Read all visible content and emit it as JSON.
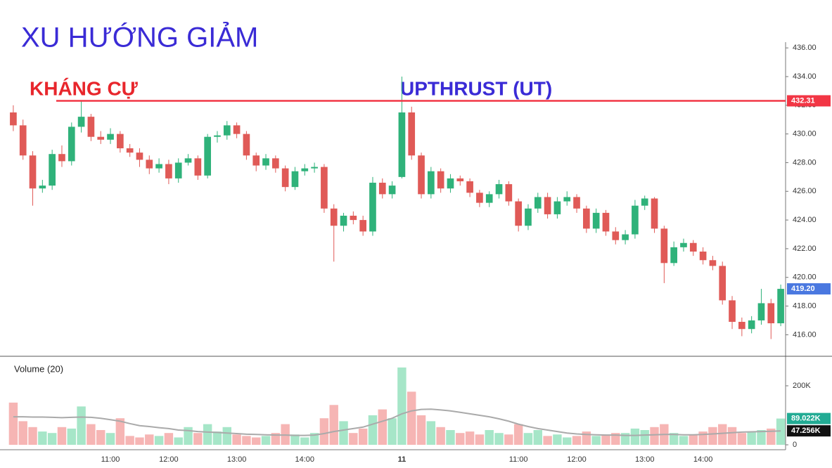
{
  "chart_data": {
    "type": "candlestick",
    "title": "XU HƯỚNG GIẢM",
    "annotations": [
      {
        "text": "KHÁNG CỰ",
        "color": "#e8262c"
      },
      {
        "text": "UPTHRUST (UT)",
        "color": "#3a2bd6"
      }
    ],
    "resistance_level": 432.31,
    "resistance_color": "#f23645",
    "categories": [
      null,
      null,
      null,
      null,
      null,
      null,
      null,
      null,
      null,
      null,
      "11:00",
      null,
      null,
      null,
      null,
      null,
      "12:00",
      null,
      null,
      null,
      null,
      null,
      null,
      "13:00",
      null,
      null,
      null,
      null,
      null,
      null,
      "14:00",
      null,
      null,
      null,
      null,
      null,
      null,
      null,
      null,
      null,
      "11",
      null,
      null,
      null,
      null,
      null,
      null,
      null,
      null,
      null,
      null,
      null,
      "11:00",
      null,
      null,
      null,
      null,
      null,
      "12:00",
      null,
      null,
      null,
      null,
      null,
      null,
      "13:00",
      null,
      null,
      null,
      null,
      null,
      "14:00",
      null,
      null,
      null,
      null,
      null,
      null,
      null,
      null
    ],
    "open": [
      431.5,
      430.6,
      428.5,
      426.2,
      426.4,
      428.6,
      428.1,
      430.5,
      431.2,
      429.8,
      429.6,
      430,
      429,
      428.7,
      428.2,
      427.6,
      427.9,
      426.9,
      428,
      428.3,
      427.1,
      429.8,
      429.9,
      430.6,
      430,
      428.5,
      427.8,
      428.3,
      427.6,
      426.3,
      427.4,
      427.6,
      427.7,
      424.8,
      423.6,
      424.3,
      424,
      423.2,
      426.6,
      425.8,
      427,
      431.5,
      428.5,
      425.8,
      427.4,
      426.2,
      426.9,
      426.7,
      425.9,
      425.2,
      425.8,
      426.5,
      425.3,
      423.6,
      424.8,
      425.6,
      424.4,
      425.3,
      425.6,
      424.8,
      423.4,
      424.5,
      423.2,
      422.6,
      423,
      425,
      425.5,
      423.4,
      421,
      422.1,
      422.4,
      421.8,
      421.2,
      420.8,
      418.4,
      416.9,
      416.4,
      417,
      418.2,
      416.8
    ],
    "high": [
      432,
      431,
      428.8,
      426.8,
      428.9,
      429.2,
      430.8,
      432.3,
      431.4,
      430.2,
      430.4,
      430.2,
      429.3,
      429,
      428.5,
      428.3,
      428.2,
      428.3,
      428.6,
      428.5,
      430,
      430.2,
      430.9,
      430.8,
      430.2,
      428.7,
      428.6,
      428.5,
      427.8,
      427.7,
      427.9,
      428,
      427.9,
      425.1,
      424.5,
      424.6,
      424.3,
      427,
      426.9,
      426.7,
      434,
      431.9,
      428.7,
      427.7,
      427.6,
      427.2,
      427.1,
      426.9,
      426.1,
      426,
      426.8,
      426.7,
      425.5,
      425.1,
      425.9,
      425.9,
      425.6,
      426,
      425.8,
      425,
      424.8,
      424.7,
      423.5,
      423.3,
      425.4,
      425.7,
      425.6,
      423.6,
      422.5,
      422.7,
      422.6,
      422.1,
      421.5,
      421.1,
      418.7,
      417.2,
      417.3,
      419.2,
      418.5,
      419.5
    ],
    "low": [
      430.2,
      428.2,
      425,
      425.9,
      426.1,
      427.7,
      427.8,
      430.1,
      429.5,
      429.3,
      429.3,
      428.7,
      428.4,
      427.7,
      427.2,
      427.3,
      426.5,
      426.6,
      427.8,
      426.8,
      426.9,
      429.4,
      429.6,
      429.7,
      428.2,
      427.4,
      427.5,
      427.3,
      426,
      426.1,
      427.1,
      427.3,
      424.5,
      421.1,
      423.2,
      423.7,
      422.9,
      422.9,
      425.5,
      425.5,
      426.9,
      428.2,
      425.5,
      425.5,
      425.9,
      425.9,
      426.4,
      425.6,
      424.9,
      424.9,
      425.5,
      425,
      423.2,
      423.3,
      424.5,
      424.1,
      424.1,
      425,
      424.5,
      423.1,
      423.1,
      422.9,
      422.3,
      422.3,
      422.7,
      424.7,
      423.1,
      419.6,
      420.8,
      421.8,
      421.5,
      420.9,
      420.5,
      418.1,
      416.4,
      415.9,
      416.1,
      416.7,
      415.7,
      416.6
    ],
    "close": [
      430.6,
      428.5,
      426.2,
      426.4,
      428.6,
      428.1,
      430.5,
      431.2,
      429.8,
      429.6,
      430,
      429,
      428.7,
      428.2,
      427.6,
      427.9,
      426.9,
      428,
      428.3,
      427.1,
      429.8,
      429.9,
      430.6,
      430,
      428.5,
      427.8,
      428.3,
      427.6,
      426.3,
      427.4,
      427.6,
      427.7,
      424.8,
      423.6,
      424.3,
      424,
      423.2,
      426.6,
      425.8,
      426.4,
      431.5,
      428.5,
      425.8,
      427.4,
      426.2,
      426.9,
      426.7,
      425.9,
      425.2,
      425.8,
      426.5,
      425.3,
      423.6,
      424.8,
      425.6,
      424.4,
      425.3,
      425.6,
      424.8,
      423.4,
      424.5,
      423.2,
      422.6,
      423,
      425,
      425.5,
      423.4,
      421,
      422.1,
      422.4,
      421.8,
      421.2,
      420.8,
      418.4,
      416.9,
      416.4,
      417,
      418.2,
      416.8,
      419.2
    ],
    "up_color": "#2fb27a",
    "down_color": "#e05a57",
    "ylim": [
      414.5,
      436.4
    ],
    "yticks": [
      {
        "value": 416,
        "label": "416.00"
      },
      {
        "value": 418,
        "label": "418.00"
      },
      {
        "value": 420,
        "label": "420.00"
      },
      {
        "value": 422,
        "label": "422.00"
      },
      {
        "value": 424,
        "label": "424.00"
      },
      {
        "value": 426,
        "label": "426.00"
      },
      {
        "value": 428,
        "label": "428.00"
      },
      {
        "value": 430,
        "label": "430.00"
      },
      {
        "value": 432,
        "label": "432.00"
      },
      {
        "value": 434,
        "label": "434.00"
      },
      {
        "value": 436,
        "label": "436.00"
      }
    ],
    "price_tags": [
      {
        "value": 432.31,
        "label": "432.31",
        "color": "#f23645"
      },
      {
        "value": 419.2,
        "label": "419.20",
        "color": "#4a78e0"
      }
    ],
    "volume_title": "Volume (20)",
    "volume": [
      143000,
      80000,
      60000,
      45000,
      40000,
      60000,
      55000,
      130000,
      70000,
      50000,
      40000,
      90000,
      30000,
      25000,
      35000,
      30000,
      40000,
      25000,
      60000,
      40000,
      70000,
      45000,
      60000,
      35000,
      30000,
      25000,
      30000,
      40000,
      70000,
      35000,
      25000,
      40000,
      90000,
      135000,
      80000,
      40000,
      55000,
      100000,
      120000,
      90000,
      262000,
      180000,
      100000,
      80000,
      60000,
      50000,
      40000,
      45000,
      35000,
      50000,
      40000,
      35000,
      70000,
      40000,
      50000,
      30000,
      35000,
      25000,
      30000,
      45000,
      30000,
      35000,
      40000,
      40000,
      55000,
      50000,
      60000,
      70000,
      40000,
      30000,
      35000,
      45000,
      60000,
      70000,
      60000,
      40000,
      45000,
      50000,
      55000,
      89022
    ],
    "volume_up_color": "#a6e6c8",
    "volume_down_color": "#f6b5b4",
    "volume_ma": [
      95000,
      95000,
      94000,
      94000,
      93000,
      92000,
      93000,
      94000,
      93000,
      90000,
      85000,
      80000,
      72000,
      65000,
      62000,
      58000,
      55000,
      50000,
      48000,
      45000,
      43000,
      42000,
      40000,
      38000,
      36000,
      35000,
      34000,
      33000,
      33000,
      32000,
      32000,
      33000,
      38000,
      45000,
      50000,
      55000,
      60000,
      70000,
      80000,
      90000,
      105000,
      115000,
      120000,
      121000,
      118000,
      115000,
      110000,
      105000,
      100000,
      95000,
      88000,
      80000,
      70000,
      62000,
      55000,
      50000,
      45000,
      40000,
      37000,
      35000,
      34000,
      33000,
      33000,
      32000,
      32000,
      33000,
      34000,
      35000,
      35000,
      34000,
      34000,
      35000,
      37000,
      39000,
      41000,
      43000,
      44000,
      45000,
      46000,
      47256
    ],
    "volume_ma_color": "#aaaaaa",
    "vlim": [
      0,
      285000
    ],
    "vticks": [
      0,
      {
        "value": 200000,
        "label": "200K"
      }
    ],
    "volume_tags": [
      {
        "value": 89022,
        "label": "89.022K",
        "color": "#22ab94"
      },
      {
        "value": 47256,
        "label": "47.256K",
        "color": "#111111"
      }
    ],
    "grid": false
  }
}
